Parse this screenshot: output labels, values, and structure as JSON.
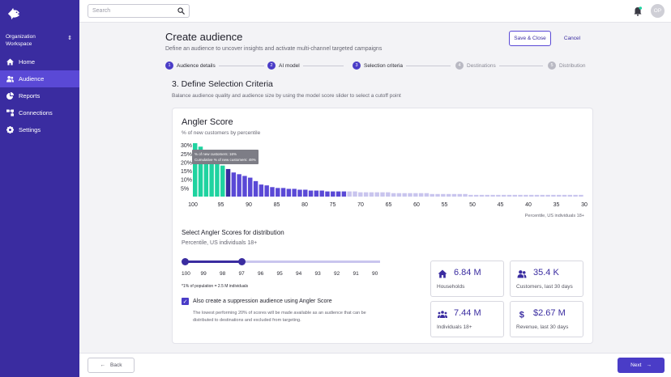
{
  "sidebar": {
    "org_name": "Organization",
    "org_type": "Workspace",
    "items": [
      {
        "label": "Home",
        "icon": "home-icon"
      },
      {
        "label": "Audience",
        "icon": "users-icon"
      },
      {
        "label": "Reports",
        "icon": "pie-chart-icon"
      },
      {
        "label": "Connections",
        "icon": "connections-icon"
      },
      {
        "label": "Settings",
        "icon": "gear-icon"
      }
    ]
  },
  "topbar": {
    "search_placeholder": "Search",
    "avatar_initials": "OP"
  },
  "header": {
    "title": "Create audience",
    "subtitle": "Define an audience to uncover insights and activate multi-channel targeted campaigns",
    "save_label": "Save & Close",
    "cancel_label": "Cancel"
  },
  "stepper": [
    {
      "num": "1",
      "label": "Audience details",
      "state": "complete"
    },
    {
      "num": "2",
      "label": "AI model",
      "state": "complete"
    },
    {
      "num": "3",
      "label": "Selection criteria",
      "state": "current"
    },
    {
      "num": "4",
      "label": "Destinations",
      "state": "inactive"
    },
    {
      "num": "5",
      "label": "Distribution",
      "state": "inactive"
    }
  ],
  "section": {
    "title": "3. Define Selection Criteria",
    "subtitle": "Balance audience quality and audience size by using the model score slider to select a cutoff point"
  },
  "card": {
    "title": "Angler Score",
    "subtitle": "% of new customers by percentile",
    "tooltip_line1": "% of new customers: 16%",
    "tooltip_line2": "Cumulative % of new customers: 48%",
    "chart_note": "Percentile, US individuals 18+"
  },
  "chart_data": {
    "type": "bar",
    "xlabel": "Percentile, US individuals 18+",
    "ylabel": "% of new customers by percentile",
    "ytick_labels": [
      "30%",
      "25%",
      "20%",
      "15%",
      "10%",
      "5%"
    ],
    "ylim": [
      0,
      31
    ],
    "xtick_labels": [
      "100",
      "95",
      "90",
      "85",
      "80",
      "75",
      "70",
      "65",
      "60",
      "55",
      "50",
      "45",
      "40",
      "35",
      "30"
    ],
    "colors": {
      "selected_high": "#1fd3a0",
      "selected": "#3a2ca0",
      "active": "#5a49d6",
      "light": "#c9c5ee"
    },
    "values": [
      31,
      29,
      26,
      21,
      20,
      18,
      16,
      14,
      13,
      12,
      11,
      9,
      7,
      6.5,
      5.5,
      5,
      5,
      4.5,
      4.5,
      4,
      4,
      3.5,
      3.5,
      3.5,
      3,
      3,
      3,
      3,
      3,
      3,
      2.5,
      2.5,
      2.5,
      2.5,
      2.5,
      2.5,
      2,
      2,
      2,
      2,
      2,
      2,
      2,
      1.5,
      1.5,
      1.5,
      1.5,
      1.5,
      1.5,
      1.5,
      1,
      1,
      1,
      1,
      1,
      1,
      1,
      1,
      1,
      1,
      1,
      1,
      1,
      1,
      1,
      1,
      1,
      1,
      1,
      1,
      1
    ]
  },
  "selector": {
    "title": "Select Angler Scores for distribution",
    "subtitle": "Percentile, US individuals 18+",
    "labels": [
      "100",
      "99",
      "98",
      "97",
      "96",
      "95",
      "94",
      "93",
      "92",
      "91",
      "90"
    ],
    "range_start": 100,
    "range_end": 97,
    "note": "*1% of population = 2.5 M individuals"
  },
  "suppression": {
    "label": "Also create a suppression audience using Angler Score",
    "description": "The lowest performing 20% of scores will be made available as an audience that can be distributed to destinations and excluded from targeting."
  },
  "stats": [
    {
      "value": "6.84 M",
      "label": "Households",
      "icon": "home-icon"
    },
    {
      "value": "35.4 K",
      "label": "Customers, last 30 days",
      "icon": "users-icon"
    },
    {
      "value": "7.44 M",
      "label": "Individuals 18+",
      "icon": "group-icon"
    },
    {
      "value": "$2.67 M",
      "label": "Revenue, last 30 days",
      "icon": "dollar-icon"
    }
  ],
  "footer": {
    "back_label": "Back",
    "next_label": "Next"
  }
}
